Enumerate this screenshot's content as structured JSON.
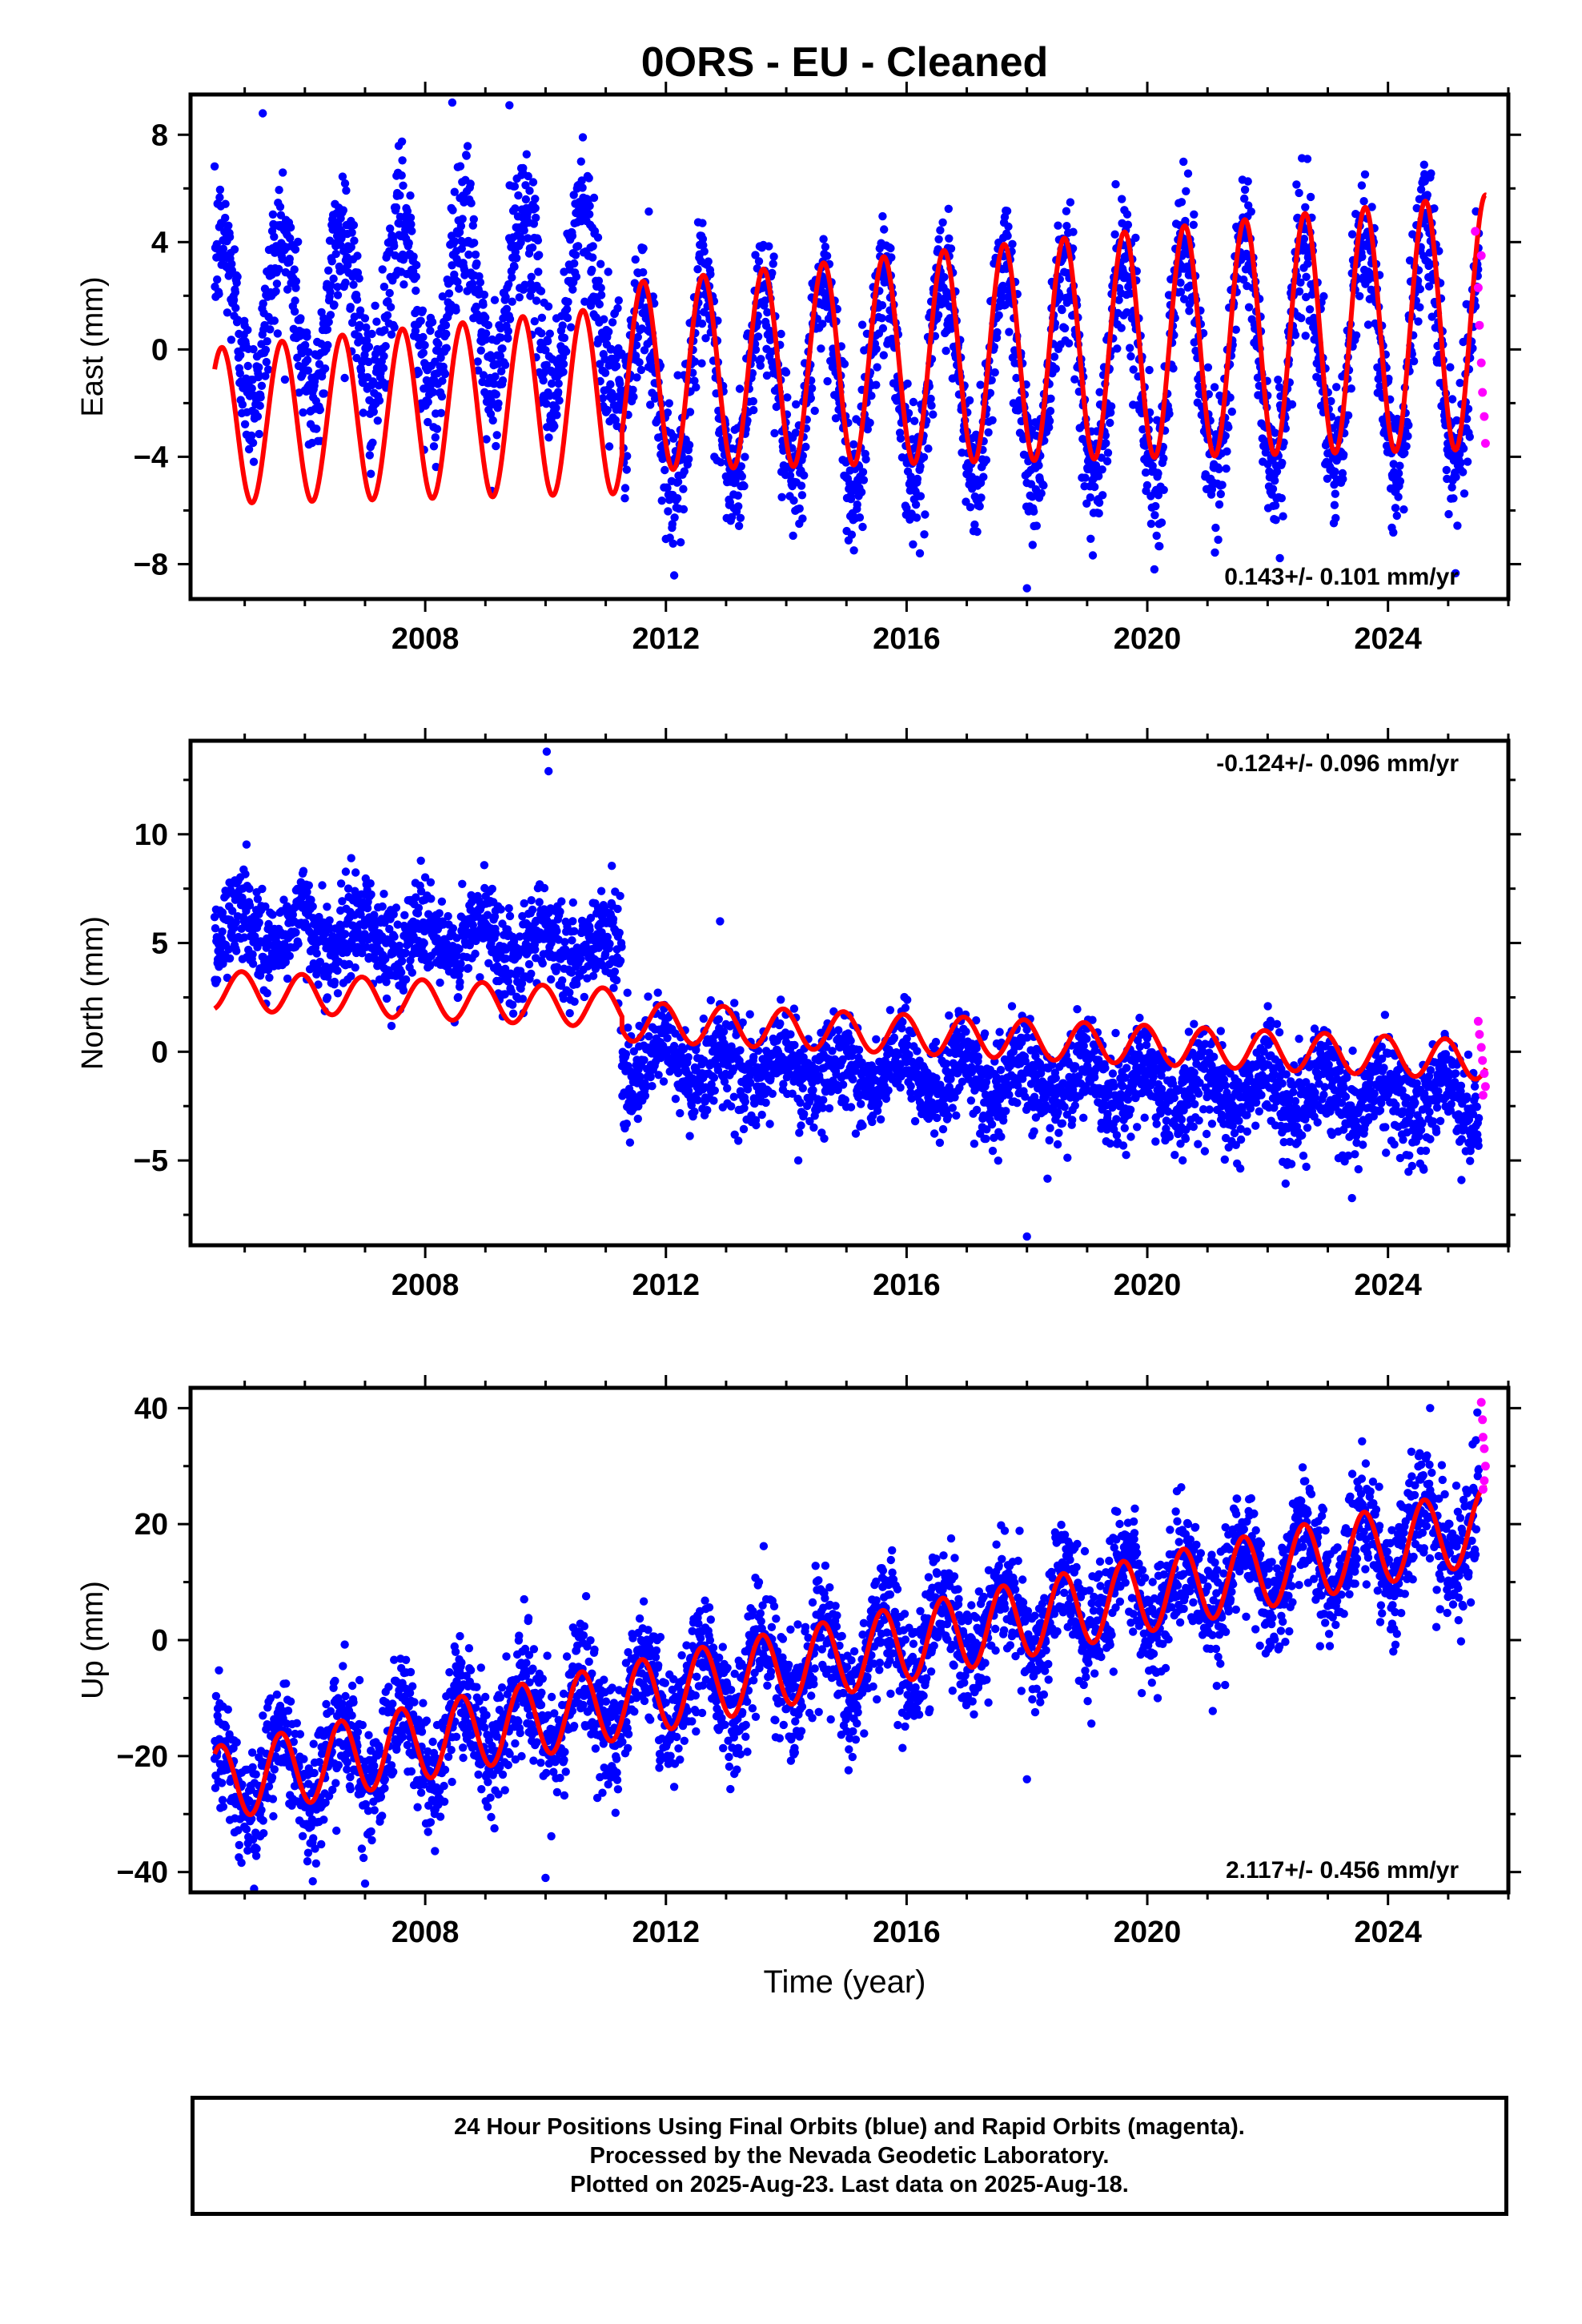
{
  "figure": {
    "title": "0ORS  - EU - Cleaned",
    "xlabel": "Time (year)"
  },
  "colors": {
    "final_orbits": "#0000ff",
    "rapid_orbits": "#ff00ff",
    "model": "#ff0000",
    "frame": "#000000"
  },
  "caption": {
    "line1": "24 Hour Positions Using Final Orbits (blue) and Rapid Orbits (magenta).",
    "line2": "Processed by the Nevada Geodetic Laboratory.",
    "line3": "Plotted on 2025-Aug-23. Last data on 2025-Aug-18."
  },
  "chart_data": [
    {
      "type": "scatter",
      "name": "east",
      "ylabel": "East (mm)",
      "xlim": [
        2004.1,
        2026.0
      ],
      "ylim": [
        -9.3,
        9.5
      ],
      "xticks": [
        2008,
        2012,
        2016,
        2020,
        2024
      ],
      "yticks": [
        -8,
        -4,
        0,
        4,
        8
      ],
      "ytick_labels": [
        "−8",
        "−4",
        "0",
        "4",
        "8"
      ],
      "rate_text": "0.143+/- 0.101 mm/yr",
      "rate_position": "bottom-right",
      "data_start": 2004.5,
      "data_end": 2025.63,
      "model": {
        "segments": [
          {
            "t0": 2004.5,
            "t1": 2011.27,
            "offset": -1.35,
            "amp": 2.9,
            "phase_peak": 0.62
          },
          {
            "t0": 2011.27,
            "t1": 2025.63,
            "offset": -0.5,
            "amp": 2.9,
            "phase_peak": 0.62
          }
        ],
        "rate_mm_per_yr": 0.143,
        "ref_year": 2015.0,
        "amp_growth_per_yr": 0.03
      },
      "scatter": {
        "segments": [
          {
            "t0": 2004.5,
            "t1": 2011.27,
            "offset": 2.6
          },
          {
            "t0": 2011.27,
            "t1": 2025.63,
            "offset": -1.2
          }
        ],
        "noise": 1.3,
        "outliers": [
          [
            2018.0,
            -8.9
          ],
          [
            2008.45,
            9.2
          ],
          [
            2009.4,
            9.1
          ],
          [
            2005.3,
            8.8
          ]
        ]
      },
      "rapid_points": [
        [
          2025.45,
          4.4
        ],
        [
          2025.5,
          2.3
        ],
        [
          2025.52,
          0.9
        ],
        [
          2025.55,
          -0.5
        ],
        [
          2025.57,
          -1.6
        ],
        [
          2025.6,
          -2.5
        ],
        [
          2025.62,
          -3.5
        ],
        [
          2025.55,
          3.5
        ]
      ]
    },
    {
      "type": "scatter",
      "name": "north",
      "ylabel": "North (mm)",
      "xlim": [
        2004.1,
        2026.0
      ],
      "ylim": [
        -8.9,
        14.3
      ],
      "xticks": [
        2008,
        2012,
        2016,
        2020,
        2024
      ],
      "yticks": [
        -5,
        0,
        5,
        10
      ],
      "ytick_labels": [
        "−5",
        "0",
        "5",
        "10"
      ],
      "rate_text": "-0.124+/- 0.096 mm/yr",
      "rate_position": "top-right",
      "data_start": 2004.5,
      "data_end": 2025.63,
      "model": {
        "segments": [
          {
            "t0": 2004.5,
            "t1": 2011.27,
            "offset": 2.0,
            "amp": 0.9,
            "phase_peak": 0.95
          },
          {
            "t0": 2011.27,
            "t1": 2025.63,
            "offset": 1.4,
            "amp": 0.9,
            "phase_peak": 0.95
          }
        ],
        "rate_mm_per_yr": -0.124,
        "ref_year": 2011.27,
        "amp_growth_per_yr": 0.0
      },
      "scatter": {
        "segments": [
          {
            "t0": 2004.5,
            "t1": 2011.27,
            "offset": 4.8
          },
          {
            "t0": 2011.27,
            "t1": 2025.63,
            "offset": -0.5
          }
        ],
        "noise": 1.1,
        "outliers": [
          [
            2018.0,
            -8.5
          ],
          [
            2010.02,
            13.8
          ],
          [
            2010.05,
            12.9
          ],
          [
            2014.2,
            -5.0
          ],
          [
            2012.9,
            6.0
          ]
        ]
      },
      "rapid_points": [
        [
          2025.5,
          1.4
        ],
        [
          2025.52,
          0.8
        ],
        [
          2025.55,
          0.2
        ],
        [
          2025.57,
          -0.4
        ],
        [
          2025.6,
          -1.0
        ],
        [
          2025.62,
          -1.6
        ],
        [
          2025.58,
          -2.0
        ]
      ]
    },
    {
      "type": "scatter",
      "name": "up",
      "ylabel": "Up (mm)",
      "xlim": [
        2004.1,
        2026.0
      ],
      "ylim": [
        -43.5,
        43.5
      ],
      "xticks": [
        2008,
        2012,
        2016,
        2020,
        2024
      ],
      "yticks": [
        -40,
        -20,
        0,
        20,
        40
      ],
      "ytick_labels": [
        "−40",
        "−20",
        "0",
        "20",
        "40"
      ],
      "rate_text": "2.117+/- 0.456 mm/yr",
      "rate_position": "bottom-right",
      "data_start": 2004.5,
      "data_end": 2025.63,
      "model": {
        "segments": [
          {
            "t0": 2004.5,
            "t1": 2025.63,
            "offset": -9.0,
            "amp": 6.5,
            "phase_peak": 0.6
          }
        ],
        "rate_mm_per_yr": 2.117,
        "ref_year": 2012.0,
        "amp_growth_per_yr": 0.0
      },
      "scatter": {
        "segments": [
          {
            "t0": 2004.5,
            "t1": 2025.63,
            "offset": -9.0
          }
        ],
        "noise": 5.0,
        "outliers": [
          [
            2010.0,
            -41.0
          ],
          [
            2007.0,
            -42.0
          ],
          [
            2018.0,
            -24.0
          ],
          [
            2024.7,
            40.0
          ]
        ]
      },
      "rapid_points": [
        [
          2025.55,
          41.0
        ],
        [
          2025.57,
          38.0
        ],
        [
          2025.58,
          35.0
        ],
        [
          2025.6,
          33.0
        ],
        [
          2025.62,
          30.0
        ],
        [
          2025.6,
          27.5
        ],
        [
          2025.58,
          26.0
        ]
      ]
    }
  ]
}
